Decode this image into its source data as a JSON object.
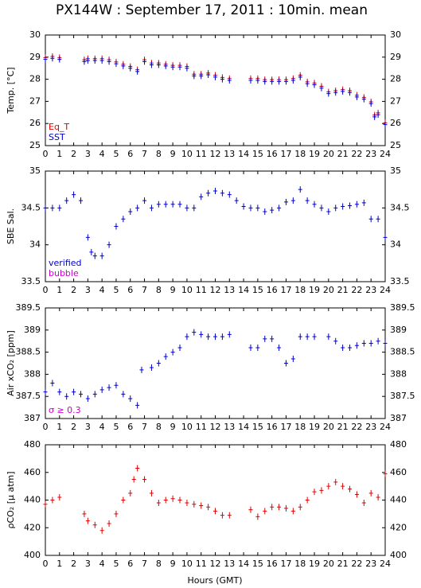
{
  "chart_data": [
    {
      "type": "scatter",
      "title": "PX144W : September 17, 2011 : 10min. mean",
      "ylabel": "Temp. [°C]",
      "x": [
        0,
        0.5,
        1,
        2.75,
        3,
        3.5,
        4,
        4.5,
        5,
        5.5,
        6,
        6.5,
        7,
        7.5,
        8,
        8.5,
        9,
        9.5,
        10,
        10.5,
        11,
        11.5,
        12,
        12.5,
        13,
        14.5,
        15,
        15.5,
        16,
        16.5,
        17,
        17.5,
        18,
        18.5,
        19,
        19.5,
        20,
        20.5,
        21,
        21.5,
        22,
        22.5,
        23,
        23.25,
        23.5,
        24
      ],
      "series": [
        {
          "name": "Eq_T",
          "color": "#e00000",
          "values": [
            28.98,
            29.03,
            28.98,
            28.88,
            28.93,
            28.93,
            28.93,
            28.88,
            28.78,
            28.68,
            28.58,
            28.43,
            28.88,
            28.73,
            28.73,
            28.68,
            28.63,
            28.63,
            28.58,
            28.23,
            28.23,
            28.28,
            28.18,
            28.08,
            28.03,
            28.03,
            28.03,
            27.98,
            27.98,
            27.98,
            27.98,
            28.03,
            28.18,
            27.88,
            27.83,
            27.68,
            27.43,
            27.48,
            27.53,
            27.48,
            27.28,
            27.18,
            26.98,
            26.38,
            26.48,
            26.03
          ]
        },
        {
          "name": "SST",
          "color": "#0000cc",
          "values": [
            28.9,
            28.95,
            28.9,
            28.8,
            28.85,
            28.85,
            28.85,
            28.8,
            28.7,
            28.6,
            28.5,
            28.35,
            28.8,
            28.65,
            28.65,
            28.6,
            28.55,
            28.55,
            28.5,
            28.15,
            28.15,
            28.2,
            28.1,
            28.0,
            27.95,
            27.95,
            27.95,
            27.9,
            27.9,
            27.9,
            27.9,
            27.95,
            28.1,
            27.8,
            27.75,
            27.6,
            27.35,
            27.4,
            27.45,
            27.4,
            27.2,
            27.1,
            26.9,
            26.3,
            26.4,
            25.95
          ]
        }
      ],
      "xlim": [
        0,
        24
      ],
      "xticks": [
        0,
        1,
        2,
        3,
        4,
        5,
        6,
        7,
        8,
        9,
        10,
        11,
        12,
        13,
        14,
        15,
        16,
        17,
        18,
        19,
        20,
        21,
        22,
        23,
        24
      ],
      "ylim": [
        25,
        30
      ],
      "yticks": [
        25,
        26,
        27,
        28,
        29,
        30
      ]
    },
    {
      "type": "scatter",
      "ylabel": "SBE Sal.",
      "x": [
        0,
        0.5,
        1,
        1.5,
        2,
        2.5,
        3,
        3.25,
        3.5,
        4,
        4.5,
        5,
        5.5,
        6,
        6.5,
        7,
        7.5,
        8,
        8.5,
        9,
        9.5,
        10,
        10.5,
        11,
        11.5,
        12,
        12.5,
        13,
        13.5,
        14,
        14.5,
        15,
        15.5,
        16,
        16.5,
        17,
        17.5,
        18,
        18.5,
        19,
        19.5,
        20,
        20.5,
        21,
        21.5,
        22,
        22.5,
        23,
        23.5,
        24
      ],
      "series": [
        {
          "name": "verified",
          "color": "#0000cc",
          "values": [
            34.5,
            34.5,
            34.5,
            34.6,
            34.68,
            34.6,
            34.1,
            33.9,
            33.85,
            33.85,
            34.0,
            34.25,
            34.35,
            34.45,
            34.5,
            34.6,
            34.5,
            34.55,
            34.55,
            34.55,
            34.55,
            34.5,
            34.5,
            34.65,
            34.7,
            34.73,
            34.7,
            34.68,
            34.6,
            34.52,
            34.5,
            34.5,
            34.45,
            34.47,
            34.5,
            34.58,
            34.6,
            34.75,
            34.6,
            34.55,
            34.5,
            34.45,
            34.5,
            34.52,
            34.53,
            34.55,
            34.57,
            34.35,
            34.35,
            34.1
          ]
        }
      ],
      "annotations": [
        {
          "text": "bubble",
          "color": "#cc00cc"
        }
      ],
      "xlim": [
        0,
        24
      ],
      "xticks": [
        0,
        1,
        2,
        3,
        4,
        5,
        6,
        7,
        8,
        9,
        10,
        11,
        12,
        13,
        14,
        15,
        16,
        17,
        18,
        19,
        20,
        21,
        22,
        23,
        24
      ],
      "ylim": [
        33.5,
        35
      ],
      "yticks": [
        33.5,
        34,
        34.5,
        35
      ]
    },
    {
      "type": "scatter",
      "ylabel": "Air xCO₂ [ppm]",
      "x": [
        0,
        0.5,
        1,
        1.5,
        2,
        2.5,
        3,
        3.5,
        4,
        4.5,
        5,
        5.5,
        6,
        6.5,
        6.8,
        7.5,
        8,
        8.5,
        9,
        9.5,
        10,
        10.5,
        11,
        11.5,
        12,
        12.5,
        13,
        14.5,
        15,
        15.5,
        16,
        16.5,
        17,
        17.5,
        18,
        18.5,
        19,
        20,
        20.5,
        21,
        21.5,
        22,
        22.5,
        23,
        23.5,
        24
      ],
      "series": [
        {
          "name": "xCO2",
          "color": "#0000cc",
          "values": [
            387.6,
            387.8,
            387.6,
            387.5,
            387.6,
            387.55,
            387.45,
            387.55,
            387.65,
            387.7,
            387.75,
            387.55,
            387.45,
            387.3,
            388.1,
            388.15,
            388.25,
            388.4,
            388.5,
            388.6,
            388.85,
            388.95,
            388.9,
            388.85,
            388.85,
            388.85,
            388.9,
            388.6,
            388.6,
            388.8,
            388.8,
            388.6,
            388.25,
            388.35,
            388.85,
            388.85,
            388.85,
            388.85,
            388.75,
            388.6,
            388.6,
            388.65,
            388.7,
            388.7,
            388.75,
            388.7
          ]
        }
      ],
      "annotations": [
        {
          "text": "σ ≥ 0.3",
          "color": "#cc00cc"
        }
      ],
      "xlim": [
        0,
        24
      ],
      "xticks": [
        0,
        1,
        2,
        3,
        4,
        5,
        6,
        7,
        8,
        9,
        10,
        11,
        12,
        13,
        14,
        15,
        16,
        17,
        18,
        19,
        20,
        21,
        22,
        23,
        24
      ],
      "ylim": [
        387,
        389.5
      ],
      "yticks": [
        387,
        387.5,
        388,
        388.5,
        389,
        389.5
      ]
    },
    {
      "type": "scatter",
      "ylabel": "ρCO₂ [μ atm]",
      "xlabel": "Hours (GMT)",
      "x": [
        0,
        0.5,
        1,
        2.75,
        3,
        3.5,
        4,
        4.5,
        5,
        5.5,
        6,
        6.25,
        6.5,
        7,
        7.5,
        8,
        8.5,
        9,
        9.5,
        10,
        10.5,
        11,
        11.5,
        12,
        12.5,
        13,
        14.5,
        15,
        15.5,
        16,
        16.5,
        17,
        17.5,
        18,
        18.5,
        19,
        19.5,
        20,
        20.5,
        21,
        21.5,
        22,
        22.5,
        23,
        23.5,
        24
      ],
      "series": [
        {
          "name": "pCO2",
          "color": "#e00000",
          "values": [
            437,
            440,
            442,
            430,
            425,
            422,
            418,
            423,
            430,
            440,
            445,
            455,
            463,
            455,
            445,
            438,
            440,
            441,
            440,
            438,
            437,
            436,
            435,
            432,
            429,
            429,
            433,
            428,
            432,
            435,
            435,
            434,
            432,
            435,
            440,
            446,
            447,
            450,
            453,
            450,
            448,
            444,
            438,
            445,
            442,
            459
          ]
        }
      ],
      "xlim": [
        0,
        24
      ],
      "xticks": [
        0,
        1,
        2,
        3,
        4,
        5,
        6,
        7,
        8,
        9,
        10,
        11,
        12,
        13,
        14,
        15,
        16,
        17,
        18,
        19,
        20,
        21,
        22,
        23,
        24
      ],
      "ylim": [
        400,
        480
      ],
      "yticks": [
        400,
        420,
        440,
        460,
        480
      ]
    }
  ]
}
